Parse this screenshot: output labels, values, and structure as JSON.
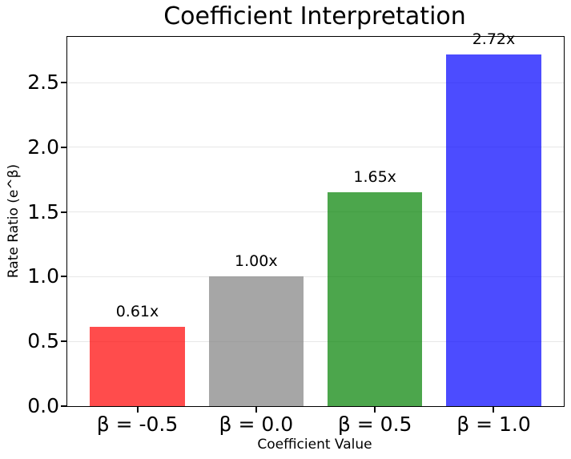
{
  "chart_data": {
    "type": "bar",
    "title": "Coefficient Interpretation",
    "xlabel": "Coefficient Value",
    "ylabel": "Rate Ratio (e^β)",
    "categories": [
      "β = -0.5",
      "β = 0.0",
      "β = 0.5",
      "β = 1.0"
    ],
    "values": [
      0.61,
      1.0,
      1.65,
      2.72
    ],
    "value_labels": [
      "0.61x",
      "1.00x",
      "1.65x",
      "2.72x"
    ],
    "bar_colors": [
      "rgba(255,0,0,0.7)",
      "rgba(128,128,128,0.7)",
      "rgba(0,128,0,0.7)",
      "rgba(0,0,255,0.7)"
    ],
    "ylim": [
      0,
      2.854
    ],
    "xlim": [
      -0.59,
      3.59
    ],
    "bar_width": 0.8,
    "yticks": [
      0.0,
      0.5,
      1.0,
      1.5,
      2.0,
      2.5
    ],
    "ytick_labels": [
      "0.0",
      "0.5",
      "1.0",
      "1.5",
      "2.0",
      "2.5"
    ],
    "grid": true,
    "grid_color": "#e7e7e7",
    "legend": "none"
  }
}
